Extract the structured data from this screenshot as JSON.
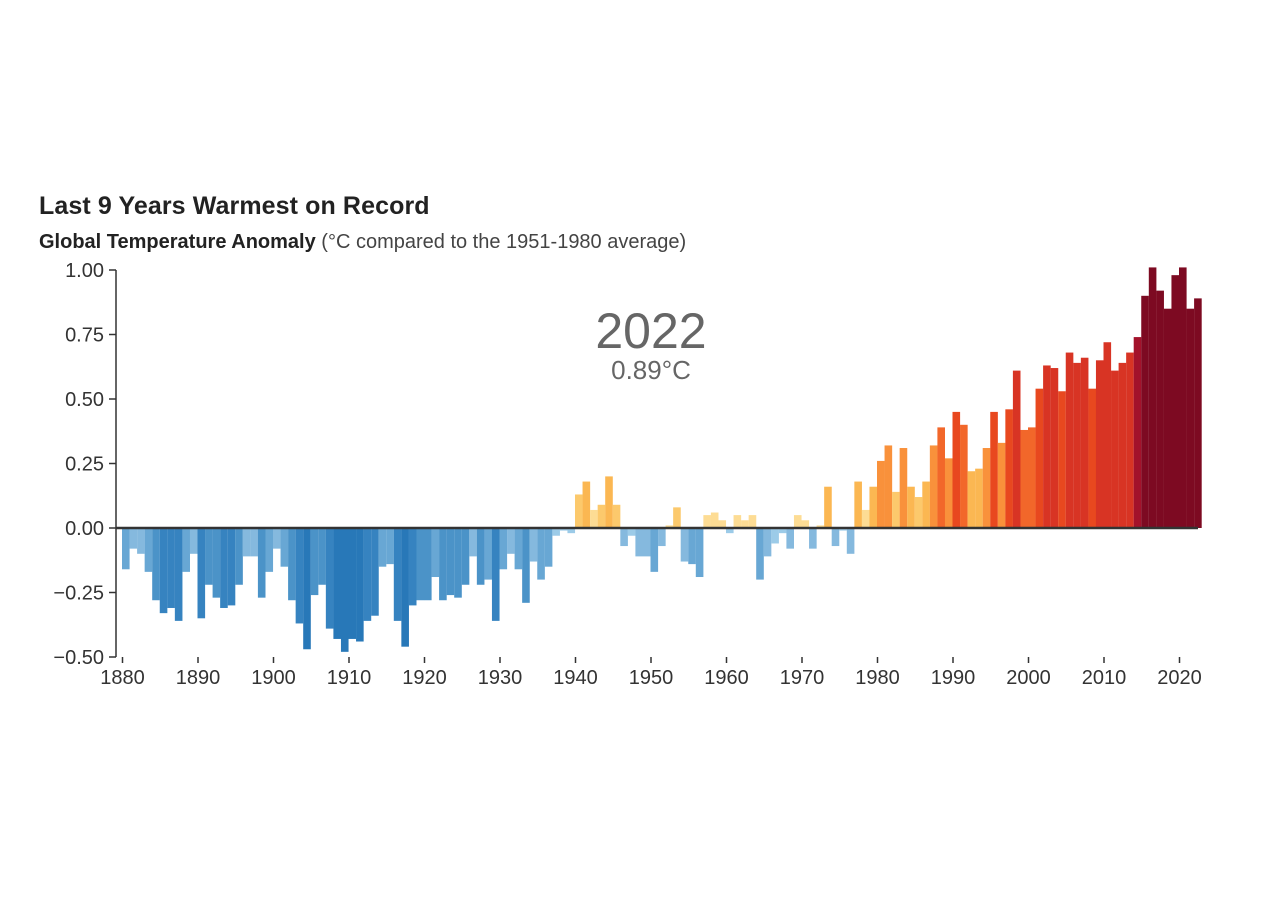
{
  "chart_data": {
    "type": "bar",
    "title": "Last 9 Years Warmest on Record",
    "subtitle_bold": "Global Temperature Anomaly",
    "subtitle_normal": " (°C compared to the 1951-1980 average)",
    "xlabel": "",
    "ylabel": "",
    "ylim": [
      -0.5,
      1.0
    ],
    "xlim": [
      1880,
      2022
    ],
    "yticks": [
      "1.00",
      "0.75",
      "0.50",
      "0.25",
      "0.00",
      "−0.25",
      "−0.50"
    ],
    "ytick_values": [
      1.0,
      0.75,
      0.5,
      0.25,
      0.0,
      -0.25,
      -0.5
    ],
    "xticks": [
      1880,
      1890,
      1900,
      1910,
      1920,
      1930,
      1940,
      1950,
      1960,
      1970,
      1980,
      1990,
      2000,
      2010,
      2020
    ],
    "grid": false,
    "start_year": 1880,
    "values": [
      -0.16,
      -0.08,
      -0.1,
      -0.17,
      -0.28,
      -0.33,
      -0.31,
      -0.36,
      -0.17,
      -0.1,
      -0.35,
      -0.22,
      -0.27,
      -0.31,
      -0.3,
      -0.22,
      -0.11,
      -0.11,
      -0.27,
      -0.17,
      -0.08,
      -0.15,
      -0.28,
      -0.37,
      -0.47,
      -0.26,
      -0.22,
      -0.39,
      -0.43,
      -0.48,
      -0.43,
      -0.44,
      -0.36,
      -0.34,
      -0.15,
      -0.14,
      -0.36,
      -0.46,
      -0.3,
      -0.28,
      -0.28,
      -0.19,
      -0.28,
      -0.26,
      -0.27,
      -0.22,
      -0.11,
      -0.22,
      -0.2,
      -0.36,
      -0.16,
      -0.1,
      -0.16,
      -0.29,
      -0.13,
      -0.2,
      -0.15,
      -0.03,
      -0.01,
      -0.02,
      0.13,
      0.18,
      0.07,
      0.09,
      0.2,
      0.09,
      -0.07,
      -0.03,
      -0.11,
      -0.11,
      -0.17,
      -0.07,
      0.01,
      0.08,
      -0.13,
      -0.14,
      -0.19,
      0.05,
      0.06,
      0.03,
      -0.02,
      0.05,
      0.03,
      0.05,
      -0.2,
      -0.11,
      -0.06,
      -0.02,
      -0.08,
      0.05,
      0.03,
      -0.08,
      0.01,
      0.16,
      -0.07,
      -0.01,
      -0.1,
      0.18,
      0.07,
      0.16,
      0.26,
      0.32,
      0.14,
      0.31,
      0.16,
      0.12,
      0.18,
      0.32,
      0.39,
      0.27,
      0.45,
      0.4,
      0.22,
      0.23,
      0.31,
      0.45,
      0.33,
      0.46,
      0.61,
      0.38,
      0.39,
      0.54,
      0.63,
      0.62,
      0.53,
      0.68,
      0.64,
      0.66,
      0.54,
      0.65,
      0.72,
      0.61,
      0.64,
      0.68,
      0.74,
      0.9,
      1.01,
      0.92,
      0.85,
      0.98,
      1.01,
      0.85,
      0.89
    ],
    "annotation": {
      "year": "2022",
      "value": "0.89°C"
    }
  }
}
